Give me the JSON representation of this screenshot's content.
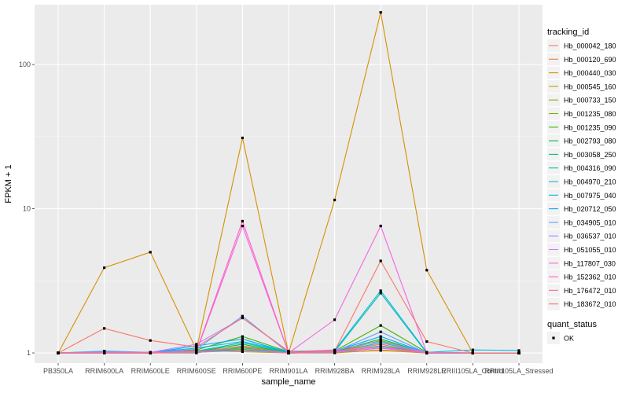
{
  "chart_data": {
    "type": "line",
    "y_scale": "log10",
    "grid": true,
    "legend_position": "right",
    "xlabel": "sample_name",
    "ylabel": "FPKM + 1",
    "ylim": [
      0.85,
      260
    ],
    "y_ticks": [
      {
        "value": 1,
        "label": "1"
      },
      {
        "value": 10,
        "label": "10"
      },
      {
        "value": 100,
        "label": "100"
      }
    ],
    "categories": [
      "PB350LA",
      "RRIM600LA",
      "RRIM600LE",
      "RRIM600SE",
      "RRIM600PE",
      "RRIM901LA",
      "RRIM928BA",
      "RRIM928LA",
      "RRIM928LE",
      "RRIII105LA_Control",
      "RRIII105LA_Stressed"
    ],
    "series": [
      {
        "name": "Hb_000042_180",
        "color": "#F8766D",
        "values": [
          1,
          1.02,
          1.01,
          1.03,
          1.1,
          1.01,
          1.02,
          1.08,
          1.01,
          1,
          1
        ]
      },
      {
        "name": "Hb_000120_690",
        "color": "#EA8331",
        "values": [
          1,
          1,
          1,
          1.01,
          1.05,
          1,
          1.01,
          1.04,
          1,
          1,
          1
        ]
      },
      {
        "name": "Hb_000440_030",
        "color": "#D89000",
        "values": [
          1,
          3.9,
          5.0,
          1.05,
          31,
          1,
          11.5,
          230,
          3.75,
          1,
          1
        ]
      },
      {
        "name": "Hb_000545_160",
        "color": "#C09B00",
        "values": [
          1,
          1.01,
          1,
          1.04,
          1.02,
          1,
          1,
          1.05,
          1,
          1,
          1
        ]
      },
      {
        "name": "Hb_000733_150",
        "color": "#A3A500",
        "values": [
          1,
          1,
          1,
          1.01,
          1.08,
          1.01,
          1.02,
          1.15,
          1,
          1,
          1
        ]
      },
      {
        "name": "Hb_001235_080",
        "color": "#7CAE00",
        "values": [
          1,
          1.01,
          1,
          1,
          1.12,
          1,
          1.01,
          1.22,
          1,
          1,
          1
        ]
      },
      {
        "name": "Hb_001235_090",
        "color": "#39B600",
        "values": [
          1,
          1.02,
          1.01,
          1.05,
          1.3,
          1.02,
          1.03,
          1.55,
          1.01,
          1,
          1
        ]
      },
      {
        "name": "Hb_002793_080",
        "color": "#00BB4E",
        "values": [
          1,
          1.01,
          1,
          1.02,
          1.15,
          1,
          1.02,
          1.25,
          1,
          1,
          1
        ]
      },
      {
        "name": "Hb_003058_250",
        "color": "#00BF7D",
        "values": [
          1,
          1,
          1,
          1.01,
          1.06,
          1,
          1.01,
          1.12,
          1,
          1,
          1
        ]
      },
      {
        "name": "Hb_004316_090",
        "color": "#00C1A3",
        "values": [
          1,
          1.01,
          1,
          1.03,
          1.18,
          1.01,
          1.02,
          2.6,
          1,
          1,
          1
        ]
      },
      {
        "name": "Hb_004970_210",
        "color": "#00BFC4",
        "values": [
          1,
          1,
          1,
          1.02,
          1.09,
          1,
          1.01,
          1.18,
          1,
          1,
          1
        ]
      },
      {
        "name": "Hb_007975_040",
        "color": "#00B8E7",
        "values": [
          1,
          1.03,
          1.01,
          1.08,
          1.2,
          1.02,
          1.04,
          2.7,
          1.01,
          1.05,
          1.04
        ]
      },
      {
        "name": "Hb_020712_050",
        "color": "#00A9FF",
        "values": [
          1,
          1.02,
          1,
          1.12,
          1.25,
          1.01,
          1.03,
          1.3,
          1,
          1,
          1
        ]
      },
      {
        "name": "Hb_034905_010",
        "color": "#619CFF",
        "values": [
          1,
          1.01,
          1,
          1.06,
          1.8,
          1,
          1.02,
          1.4,
          1,
          1,
          1
        ]
      },
      {
        "name": "Hb_036537_010",
        "color": "#AE87FF",
        "values": [
          1,
          1.02,
          1.01,
          1.15,
          1.75,
          1.02,
          1.05,
          1.2,
          1.01,
          1,
          1
        ]
      },
      {
        "name": "Hb_051055_010",
        "color": "#DB72FB",
        "values": [
          1,
          1,
          1,
          1.01,
          1.04,
          1,
          1.01,
          1.08,
          1,
          1,
          1
        ]
      },
      {
        "name": "Hb_117807_030",
        "color": "#F564E3",
        "values": [
          1,
          1.01,
          1,
          1.02,
          7.6,
          1,
          1.7,
          7.6,
          1,
          1,
          1
        ]
      },
      {
        "name": "Hb_152362_010",
        "color": "#FF61C3",
        "values": [
          1,
          1.01,
          1.01,
          1.03,
          8.2,
          1,
          1.03,
          1.1,
          1,
          1,
          1
        ]
      },
      {
        "name": "Hb_176472_010",
        "color": "#FF6C91",
        "values": [
          1,
          1.01,
          1,
          1.02,
          1.1,
          1,
          1.02,
          1.15,
          1,
          1,
          1
        ]
      },
      {
        "name": "Hb_183672_010",
        "color": "#F8766D",
        "values": [
          1,
          1.48,
          1.22,
          1.1,
          1.75,
          1.03,
          1.03,
          4.35,
          1.2,
          1,
          1
        ]
      }
    ],
    "legend": {
      "title": "tracking_id"
    },
    "legend2": {
      "title": "quant_status",
      "entries": [
        {
          "label": "OK"
        }
      ]
    }
  }
}
